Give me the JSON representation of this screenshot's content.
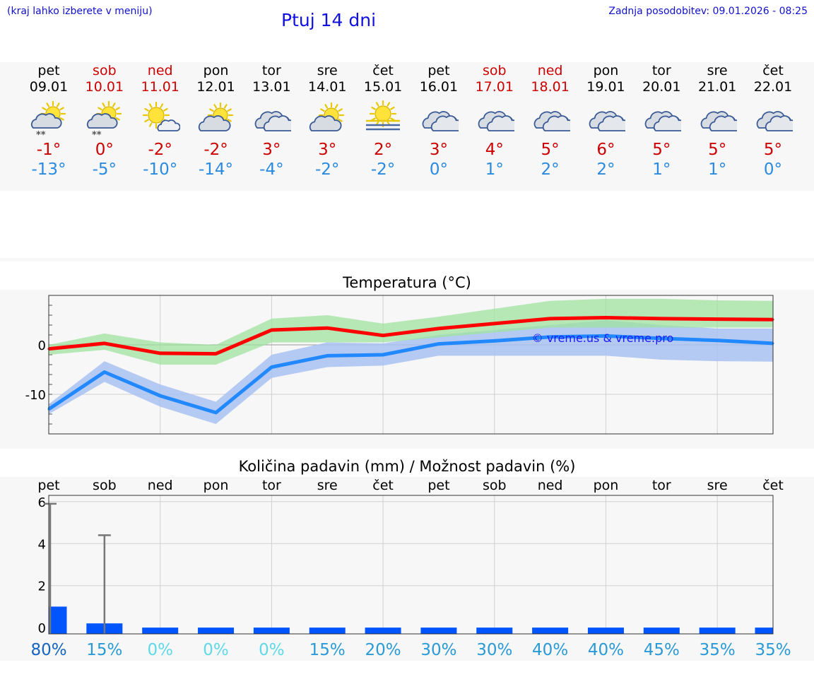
{
  "header": {
    "menu_hint": "(kraj lahko izberete v meniju)",
    "title": "Ptuj 14 dni",
    "last_update": "Zadnja posodobitev: 09.01.2026 - 08:25"
  },
  "days": [
    {
      "name": "pet",
      "date": "09.01",
      "weekend": false,
      "icon": "partly-cloudy-snow-icon",
      "tmax": "-1°",
      "tmin": "-13°"
    },
    {
      "name": "sob",
      "date": "10.01",
      "weekend": true,
      "icon": "partly-cloudy-snow-icon",
      "tmax": "0°",
      "tmin": "-5°"
    },
    {
      "name": "ned",
      "date": "11.01",
      "weekend": true,
      "icon": "sun-small-cloud-icon",
      "tmax": "-2°",
      "tmin": "-10°"
    },
    {
      "name": "pon",
      "date": "12.01",
      "weekend": false,
      "icon": "partly-cloudy-icon",
      "tmax": "-2°",
      "tmin": "-14°"
    },
    {
      "name": "tor",
      "date": "13.01",
      "weekend": false,
      "icon": "cloudy-icon",
      "tmax": "3°",
      "tmin": "-4°"
    },
    {
      "name": "sre",
      "date": "14.01",
      "weekend": false,
      "icon": "partly-cloudy-icon",
      "tmax": "3°",
      "tmin": "-2°"
    },
    {
      "name": "čet",
      "date": "15.01",
      "weekend": false,
      "icon": "sun-fog-icon",
      "tmax": "2°",
      "tmin": "-2°"
    },
    {
      "name": "pet",
      "date": "16.01",
      "weekend": false,
      "icon": "cloudy-icon",
      "tmax": "3°",
      "tmin": "0°"
    },
    {
      "name": "sob",
      "date": "17.01",
      "weekend": true,
      "icon": "cloudy-icon",
      "tmax": "4°",
      "tmin": "1°"
    },
    {
      "name": "ned",
      "date": "18.01",
      "weekend": true,
      "icon": "cloudy-icon",
      "tmax": "5°",
      "tmin": "2°"
    },
    {
      "name": "pon",
      "date": "19.01",
      "weekend": false,
      "icon": "cloudy-icon",
      "tmax": "6°",
      "tmin": "2°"
    },
    {
      "name": "tor",
      "date": "20.01",
      "weekend": false,
      "icon": "cloudy-icon",
      "tmax": "5°",
      "tmin": "1°"
    },
    {
      "name": "sre",
      "date": "21.01",
      "weekend": false,
      "icon": "cloudy-icon",
      "tmax": "5°",
      "tmin": "1°"
    },
    {
      "name": "čet",
      "date": "22.01",
      "weekend": false,
      "icon": "cloudy-icon",
      "tmax": "5°",
      "tmin": "0°"
    }
  ],
  "colors": {
    "max_line": "#ff0000",
    "max_band": "#9fe39f",
    "min_line": "#2288ff",
    "min_band": "#a9c2f2",
    "precip_bar": "#0055ff",
    "error_bar": "#777777"
  },
  "chart_data": [
    {
      "type": "line",
      "title": "Temperatura (°C)",
      "watermark": "© vreme.us & vreme.pro",
      "categories": [
        "pet",
        "sob",
        "ned",
        "pon",
        "tor",
        "sre",
        "čet",
        "pet",
        "sob",
        "ned",
        "pon",
        "tor",
        "sre",
        "čet"
      ],
      "ylim": [
        -18,
        10
      ],
      "yticks": [
        0,
        -10
      ],
      "series": [
        {
          "name": "max",
          "values": [
            -0.8,
            0.3,
            -1.7,
            -1.8,
            3.0,
            3.4,
            1.9,
            3.3,
            4.3,
            5.3,
            5.5,
            5.3,
            5.2,
            5.1
          ],
          "band_low": [
            -2.0,
            -1.0,
            -4.0,
            -4.0,
            0.5,
            0.5,
            0.5,
            1.5,
            2.5,
            3.5,
            3.5,
            3.5,
            3.5,
            3.5
          ],
          "band_high": [
            0.0,
            2.3,
            0.5,
            0.0,
            5.3,
            6.0,
            4.3,
            5.7,
            7.3,
            8.9,
            9.3,
            9.3,
            9.0,
            8.9
          ]
        },
        {
          "name": "min",
          "values": [
            -13.0,
            -5.5,
            -10.3,
            -13.7,
            -4.5,
            -2.2,
            -2.0,
            0.2,
            0.8,
            1.6,
            1.8,
            1.3,
            0.9,
            0.3
          ],
          "band_low": [
            -14.0,
            -7.5,
            -12.5,
            -16.0,
            -6.7,
            -4.5,
            -4.2,
            -2.2,
            -2.2,
            -2.2,
            -2.2,
            -3.0,
            -3.3,
            -3.4
          ],
          "band_high": [
            -12.0,
            -3.3,
            -8.0,
            -11.5,
            -2.0,
            0.5,
            0.3,
            2.0,
            3.0,
            4.0,
            5.0,
            4.0,
            3.3,
            3.3
          ]
        }
      ]
    },
    {
      "type": "bar",
      "title": "Količina padavin (mm) / Možnost padavin (%)",
      "categories": [
        "pet",
        "sob",
        "ned",
        "pon",
        "tor",
        "sre",
        "čet",
        "pet",
        "sob",
        "ned",
        "pon",
        "tor",
        "sre",
        "čet"
      ],
      "ylim": [
        -0.3,
        6.3
      ],
      "yticks": [
        6,
        4,
        2,
        0
      ],
      "values": [
        1.0,
        0.2,
        0,
        0,
        0,
        0,
        0,
        0,
        0,
        0,
        0,
        0,
        0,
        0
      ],
      "error_high": [
        5.9,
        4.4,
        0,
        0,
        0,
        0,
        0,
        0,
        0,
        0,
        0,
        0,
        0,
        0
      ],
      "probability": [
        "80%",
        "15%",
        "0%",
        "0%",
        "0%",
        "15%",
        "20%",
        "30%",
        "30%",
        "40%",
        "40%",
        "45%",
        "35%",
        "35%"
      ],
      "probability_colors": [
        "#1565c0",
        "#2a9ad6",
        "#5fd8e8",
        "#5fd8e8",
        "#5fd8e8",
        "#2a9ad6",
        "#2a9ad6",
        "#2a9ad6",
        "#2a9ad6",
        "#2a9ad6",
        "#2a9ad6",
        "#2a9ad6",
        "#2a9ad6",
        "#2a9ad6"
      ]
    }
  ]
}
